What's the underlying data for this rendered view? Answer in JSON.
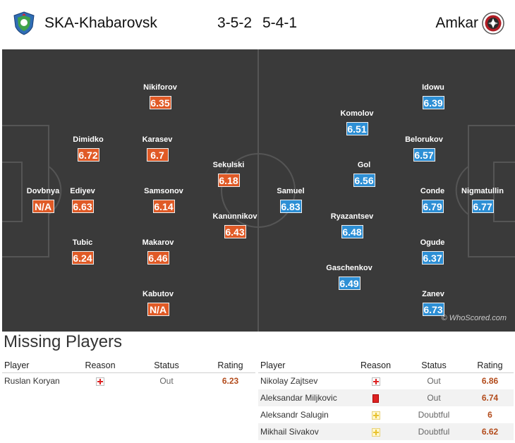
{
  "home": {
    "name": "SKA-Khabarovsk",
    "formation": "3-5-2",
    "crest_icon": "ska-khabarovsk-crest"
  },
  "away": {
    "name": "Amkar",
    "formation": "5-4-1",
    "crest_icon": "amkar-crest"
  },
  "watermark": "© WhoScored.com",
  "colors": {
    "home_rating": "#e05a26",
    "away_rating": "#2d8fd5",
    "pitch": "#3a3a3a"
  },
  "home_players": [
    {
      "name": "Dovbnya",
      "rating": "N/A"
    },
    {
      "name": "Dimidko",
      "rating": "6.72"
    },
    {
      "name": "Ediyev",
      "rating": "6.63"
    },
    {
      "name": "Tubic",
      "rating": "6.24"
    },
    {
      "name": "Nikiforov",
      "rating": "6.35"
    },
    {
      "name": "Karasev",
      "rating": "6.7"
    },
    {
      "name": "Samsonov",
      "rating": "6.14"
    },
    {
      "name": "Makarov",
      "rating": "6.46"
    },
    {
      "name": "Kabutov",
      "rating": "N/A"
    },
    {
      "name": "Sekulski",
      "rating": "6.18"
    },
    {
      "name": "Kanunnikov",
      "rating": "6.43"
    }
  ],
  "away_players": [
    {
      "name": "Samuel",
      "rating": "6.83"
    },
    {
      "name": "Komolov",
      "rating": "6.51"
    },
    {
      "name": "Gol",
      "rating": "6.56"
    },
    {
      "name": "Ryazantsev",
      "rating": "6.48"
    },
    {
      "name": "Gaschenkov",
      "rating": "6.49"
    },
    {
      "name": "Idowu",
      "rating": "6.39"
    },
    {
      "name": "Belorukov",
      "rating": "6.57"
    },
    {
      "name": "Conde",
      "rating": "6.79"
    },
    {
      "name": "Ogude",
      "rating": "6.37"
    },
    {
      "name": "Zanev",
      "rating": "6.73"
    },
    {
      "name": "Nigmatullin",
      "rating": "6.77"
    }
  ],
  "missing": {
    "title": "Missing Players",
    "headers": {
      "player": "Player",
      "reason": "Reason",
      "status": "Status",
      "rating": "Rating"
    },
    "home": [
      {
        "player": "Ruslan Koryan",
        "reason": "injury-icon",
        "status": "Out",
        "rating": "6.23"
      }
    ],
    "away": [
      {
        "player": "Nikolay Zajtsev",
        "reason": "injury-icon",
        "status": "Out",
        "rating": "6.86"
      },
      {
        "player": "Aleksandar Miljkovic",
        "reason": "red-card-icon",
        "status": "Out",
        "rating": "6.74"
      },
      {
        "player": "Aleksandr Salugin",
        "reason": "doubtful-icon",
        "status": "Doubtful",
        "rating": "6"
      },
      {
        "player": "Mikhail Sivakov",
        "reason": "doubtful-icon",
        "status": "Doubtful",
        "rating": "6.62"
      }
    ]
  }
}
